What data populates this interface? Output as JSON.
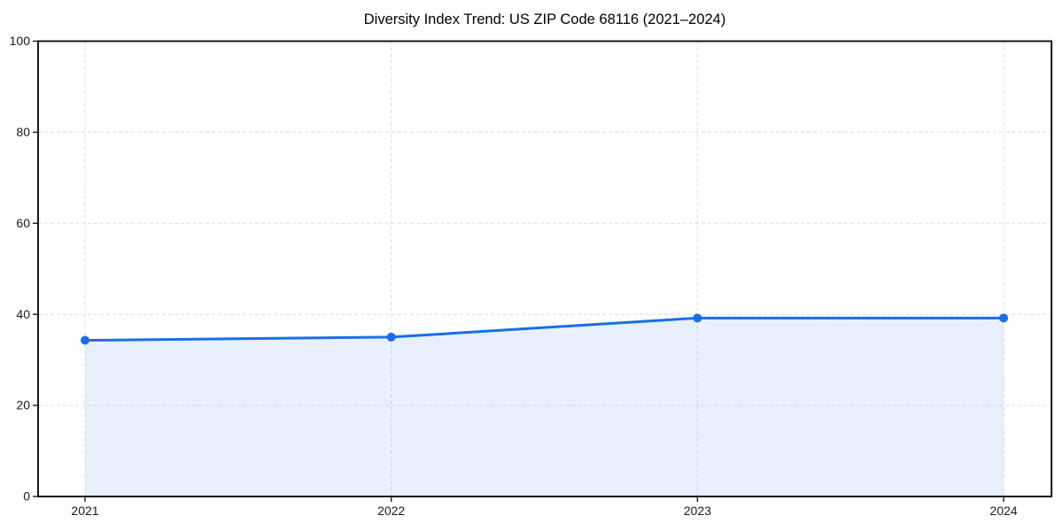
{
  "chart_data": {
    "type": "area",
    "title": "Diversity Index Trend: US ZIP Code 68116 (2021–2024)",
    "x": [
      2021,
      2022,
      2023,
      2024
    ],
    "xtick_labels": [
      "2021",
      "2022",
      "2023",
      "2024"
    ],
    "series": [
      {
        "name": "Diversity Index",
        "values": [
          34.3,
          35.0,
          39.2,
          39.2
        ]
      }
    ],
    "xlabel": "",
    "ylabel": "",
    "ylim": [
      0,
      100
    ],
    "yticks": [
      0,
      20,
      40,
      60,
      80,
      100
    ],
    "grid": "both-axes dashed",
    "legend": "none",
    "marker": "circle",
    "line_width": 3,
    "marker_radius": 5,
    "colors": {
      "line": "#1b6ee7",
      "marker": "#1b6ee7",
      "area_fill": "rgba(27,110,231,0.10)",
      "gridline": "#dcdcdc",
      "axis_border": "#1a1a1a",
      "tick_label": "#1a1a1a",
      "title": "#000000",
      "background": "#ffffff"
    }
  }
}
